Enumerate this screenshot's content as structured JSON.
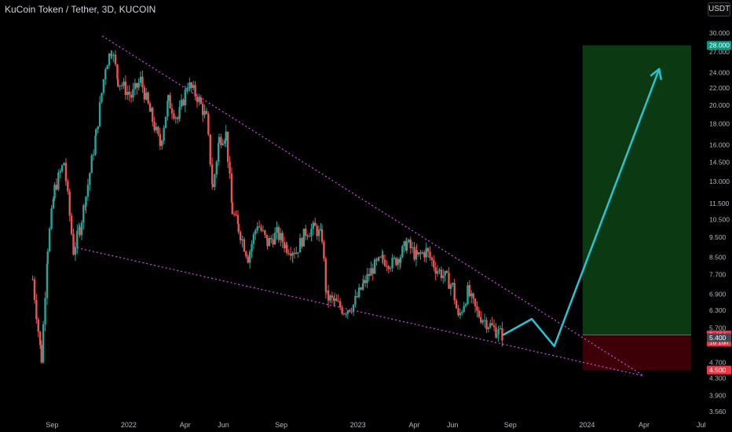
{
  "header": {
    "title": "KuCoin Token / Tether, 3D, KUCOIN",
    "currency_button": "USDT"
  },
  "colors": {
    "up": "#26a69a",
    "down": "#ef5350",
    "wedge": "#e040fb",
    "arrow": "#21c7d6",
    "target_zone": "#0b3a12",
    "stop_zone": "#3d0007"
  },
  "chart_data": {
    "type": "candlestick",
    "title": "KuCoin Token / Tether, 3D, KUCOIN",
    "y_scale": "log",
    "ylim": [
      3.5,
      32.5
    ],
    "y_ticks": [
      "30.000",
      "27.000",
      "24.000",
      "22.000",
      "20.000",
      "18.000",
      "16.000",
      "14.500",
      "13.000",
      "11.500",
      "10.500",
      "9.500",
      "8.500",
      "7.700",
      "6.900",
      "6.300",
      "5.700",
      "4.700",
      "4.300",
      "3.900",
      "3.560"
    ],
    "x_ticks": [
      "Sep",
      "2022",
      "Apr",
      "Jun",
      "Sep",
      "2023",
      "Apr",
      "Jun",
      "Sep",
      "2024",
      "Apr",
      "Jul"
    ],
    "price_labels": [
      {
        "text": "28.000",
        "value": 28.0,
        "color": "#089981"
      },
      {
        "text": "5.484",
        "sub": "1d 16h",
        "value": 5.484,
        "color": "#f23645"
      },
      {
        "text": "5.400",
        "value": 5.4,
        "color": "#434651"
      },
      {
        "text": "4.500",
        "value": 4.5,
        "color": "#f23645"
      }
    ],
    "ohlc_path": [
      [
        "2021-08-01",
        7.5
      ],
      [
        "2021-08-15",
        4.8
      ],
      [
        "2021-08-25",
        9.0
      ],
      [
        "2021-09-05",
        12.5
      ],
      [
        "2021-09-20",
        14.5
      ],
      [
        "2021-10-05",
        8.8
      ],
      [
        "2021-10-15",
        10.0
      ],
      [
        "2021-10-25",
        12.0
      ],
      [
        "2021-11-10",
        17.0
      ],
      [
        "2021-11-25",
        25.0
      ],
      [
        "2021-12-05",
        27.5
      ],
      [
        "2021-12-15",
        23.0
      ],
      [
        "2022-01-05",
        21.0
      ],
      [
        "2022-01-20",
        23.0
      ],
      [
        "2022-02-05",
        19.0
      ],
      [
        "2022-02-20",
        16.0
      ],
      [
        "2022-03-05",
        20.5
      ],
      [
        "2022-03-20",
        18.5
      ],
      [
        "2022-04-05",
        22.5
      ],
      [
        "2022-04-20",
        21.0
      ],
      [
        "2022-05-05",
        18.5
      ],
      [
        "2022-05-15",
        12.5
      ],
      [
        "2022-05-25",
        16.5
      ],
      [
        "2022-06-05",
        17.0
      ],
      [
        "2022-06-15",
        11.0
      ],
      [
        "2022-06-25",
        10.0
      ],
      [
        "2022-07-10",
        8.5
      ],
      [
        "2022-07-25",
        10.3
      ],
      [
        "2022-08-10",
        9.2
      ],
      [
        "2022-08-25",
        9.7
      ],
      [
        "2022-09-10",
        9.0
      ],
      [
        "2022-09-25",
        8.8
      ],
      [
        "2022-10-10",
        9.8
      ],
      [
        "2022-10-25",
        10.0
      ],
      [
        "2022-11-05",
        9.5
      ],
      [
        "2022-11-12",
        6.8
      ],
      [
        "2022-11-25",
        6.6
      ],
      [
        "2022-12-10",
        6.3
      ],
      [
        "2022-12-25",
        6.5
      ],
      [
        "2023-01-10",
        7.3
      ],
      [
        "2023-01-25",
        8.0
      ],
      [
        "2023-02-10",
        8.4
      ],
      [
        "2023-02-25",
        8.2
      ],
      [
        "2023-03-10",
        8.6
      ],
      [
        "2023-03-20",
        9.2
      ],
      [
        "2023-04-05",
        8.5
      ],
      [
        "2023-04-20",
        8.8
      ],
      [
        "2023-05-05",
        8.0
      ],
      [
        "2023-05-20",
        7.6
      ],
      [
        "2023-06-01",
        7.2
      ],
      [
        "2023-06-10",
        6.0
      ],
      [
        "2023-06-25",
        7.0
      ],
      [
        "2023-07-10",
        6.2
      ],
      [
        "2023-07-25",
        5.9
      ],
      [
        "2023-08-10",
        5.6
      ],
      [
        "2023-08-20",
        5.48
      ]
    ],
    "trendlines": [
      {
        "name": "upper",
        "from": [
          "2021-11-20",
          29.5
        ],
        "to": [
          "2024-04-01",
          4.35
        ]
      },
      {
        "name": "lower",
        "from": [
          "2021-10-05",
          9.0
        ],
        "to": [
          "2024-04-01",
          4.35
        ]
      }
    ],
    "projection": [
      [
        "2023-08-20",
        5.48
      ],
      [
        "2023-10-05",
        6.0
      ],
      [
        "2023-11-10",
        5.15
      ],
      [
        "2024-04-25",
        24.5
      ]
    ],
    "position": {
      "from": "2023-12-25",
      "to": "2024-06-15",
      "entry": 5.484,
      "target": 28.0,
      "stop": 4.5
    }
  }
}
